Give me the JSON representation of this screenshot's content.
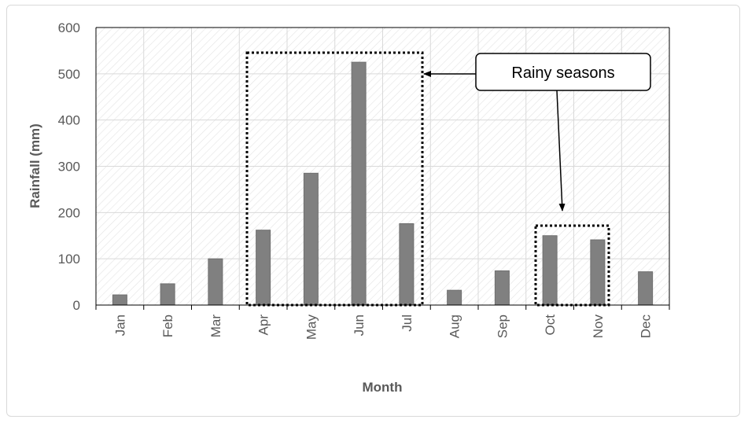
{
  "chart_data": {
    "type": "bar",
    "categories": [
      "Jan",
      "Feb",
      "Mar",
      "Apr",
      "May",
      "Jun",
      "Jul",
      "Aug",
      "Sep",
      "Oct",
      "Nov",
      "Dec"
    ],
    "values": [
      22,
      46,
      100,
      162,
      285,
      525,
      176,
      32,
      74,
      150,
      141,
      72
    ],
    "xlabel": "Month",
    "ylabel": "Rainfall (mm)",
    "ylim": [
      0,
      600
    ],
    "yticks": [
      0,
      100,
      200,
      300,
      400,
      500,
      600
    ],
    "grid": true,
    "legend": "none",
    "colors": {
      "bar": "#808080",
      "bar_edge": "#6f6f6f",
      "grid": "#d9d9d9",
      "hatch": "#e3e3e3"
    },
    "annotations": {
      "label": "Rainy seasons",
      "highlighted_groups": [
        [
          "Apr",
          "May",
          "Jun",
          "Jul"
        ],
        [
          "Oct",
          "Nov"
        ]
      ]
    }
  }
}
